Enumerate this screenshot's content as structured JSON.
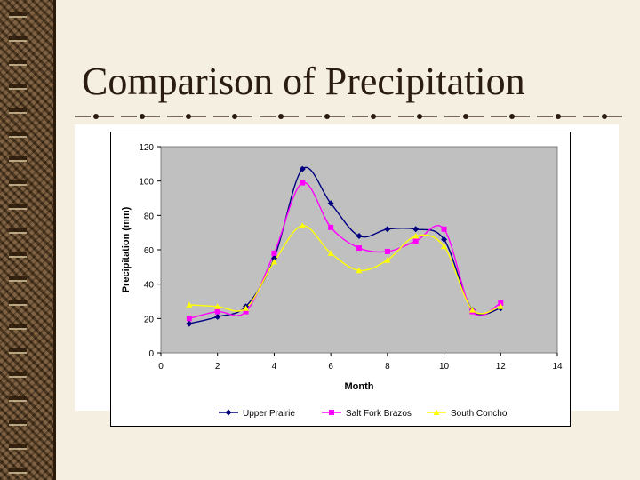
{
  "slide": {
    "title": "Comparison of Precipitation"
  },
  "colors": {
    "background": "#f4efe0",
    "binding": "#6b4a26",
    "plot_area": "#c0c0c0",
    "title_text": "#2a1c10"
  },
  "chart_data": {
    "type": "line",
    "title": "",
    "xlabel": "Month",
    "ylabel": "Precipitation (mm)",
    "xlim": [
      0,
      14
    ],
    "ylim": [
      0,
      120
    ],
    "xticks": [
      0,
      2,
      4,
      6,
      8,
      10,
      12,
      14
    ],
    "yticks": [
      0,
      20,
      40,
      60,
      80,
      100,
      120
    ],
    "grid": false,
    "legend_position": "bottom",
    "x": [
      1,
      2,
      3,
      4,
      5,
      6,
      7,
      8,
      9,
      10,
      11,
      12
    ],
    "series": [
      {
        "name": "Upper Prairie",
        "color": "#000080",
        "marker": "diamond",
        "values": [
          17,
          21,
          27,
          55,
          107,
          87,
          68,
          72,
          72,
          66,
          25,
          26
        ]
      },
      {
        "name": "Salt Fork Brazos",
        "color": "#ff00ff",
        "marker": "square",
        "values": [
          20,
          24,
          24,
          58,
          99,
          73,
          61,
          59,
          65,
          72,
          24,
          29
        ]
      },
      {
        "name": "South Concho",
        "color": "#ffff00",
        "marker": "triangle",
        "values": [
          28,
          27,
          26,
          53,
          74,
          58,
          48,
          54,
          68,
          62,
          25,
          27
        ]
      }
    ]
  }
}
